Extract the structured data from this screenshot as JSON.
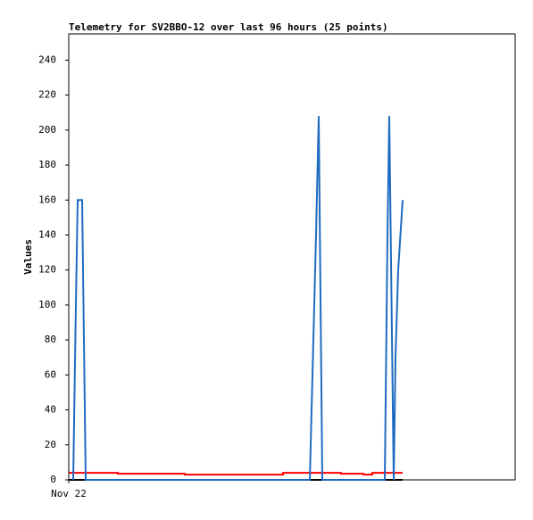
{
  "chart_data": {
    "type": "line",
    "title": "Telemetry for SV2BBO-12 over last 96 hours (25 points)",
    "y_label": "Values",
    "xlim": [
      0,
      100
    ],
    "xticks": [
      {
        "value": 0,
        "label": "Nov 22"
      }
    ],
    "ylim": [
      0,
      255
    ],
    "yticks": [
      0,
      20,
      40,
      60,
      80,
      100,
      120,
      140,
      160,
      180,
      200,
      220,
      240
    ],
    "grid": false,
    "series": [
      {
        "color": "#000000",
        "x": [
          0,
          74.8
        ],
        "values": [
          0,
          0
        ]
      },
      {
        "color": "#ff0000",
        "x": [
          0,
          11,
          11,
          26,
          26,
          48,
          48,
          61,
          61,
          66,
          66,
          68,
          68,
          74.8
        ],
        "values": [
          4,
          4,
          3.5,
          3.5,
          3,
          3,
          4,
          4,
          3.5,
          3.5,
          3,
          3,
          4,
          4
        ]
      },
      {
        "color": "#1f6bbf",
        "x": [
          1,
          1.6,
          2,
          3,
          3.8,
          54,
          54.6,
          55.4,
          56,
          56.8,
          70.8,
          71.4,
          71.8,
          72.8,
          73.2,
          73.8,
          74.8
        ],
        "values": [
          0,
          100,
          160,
          160,
          0,
          0,
          60,
          140,
          208,
          0,
          0,
          140,
          208,
          0,
          70,
          120,
          160
        ]
      }
    ]
  }
}
